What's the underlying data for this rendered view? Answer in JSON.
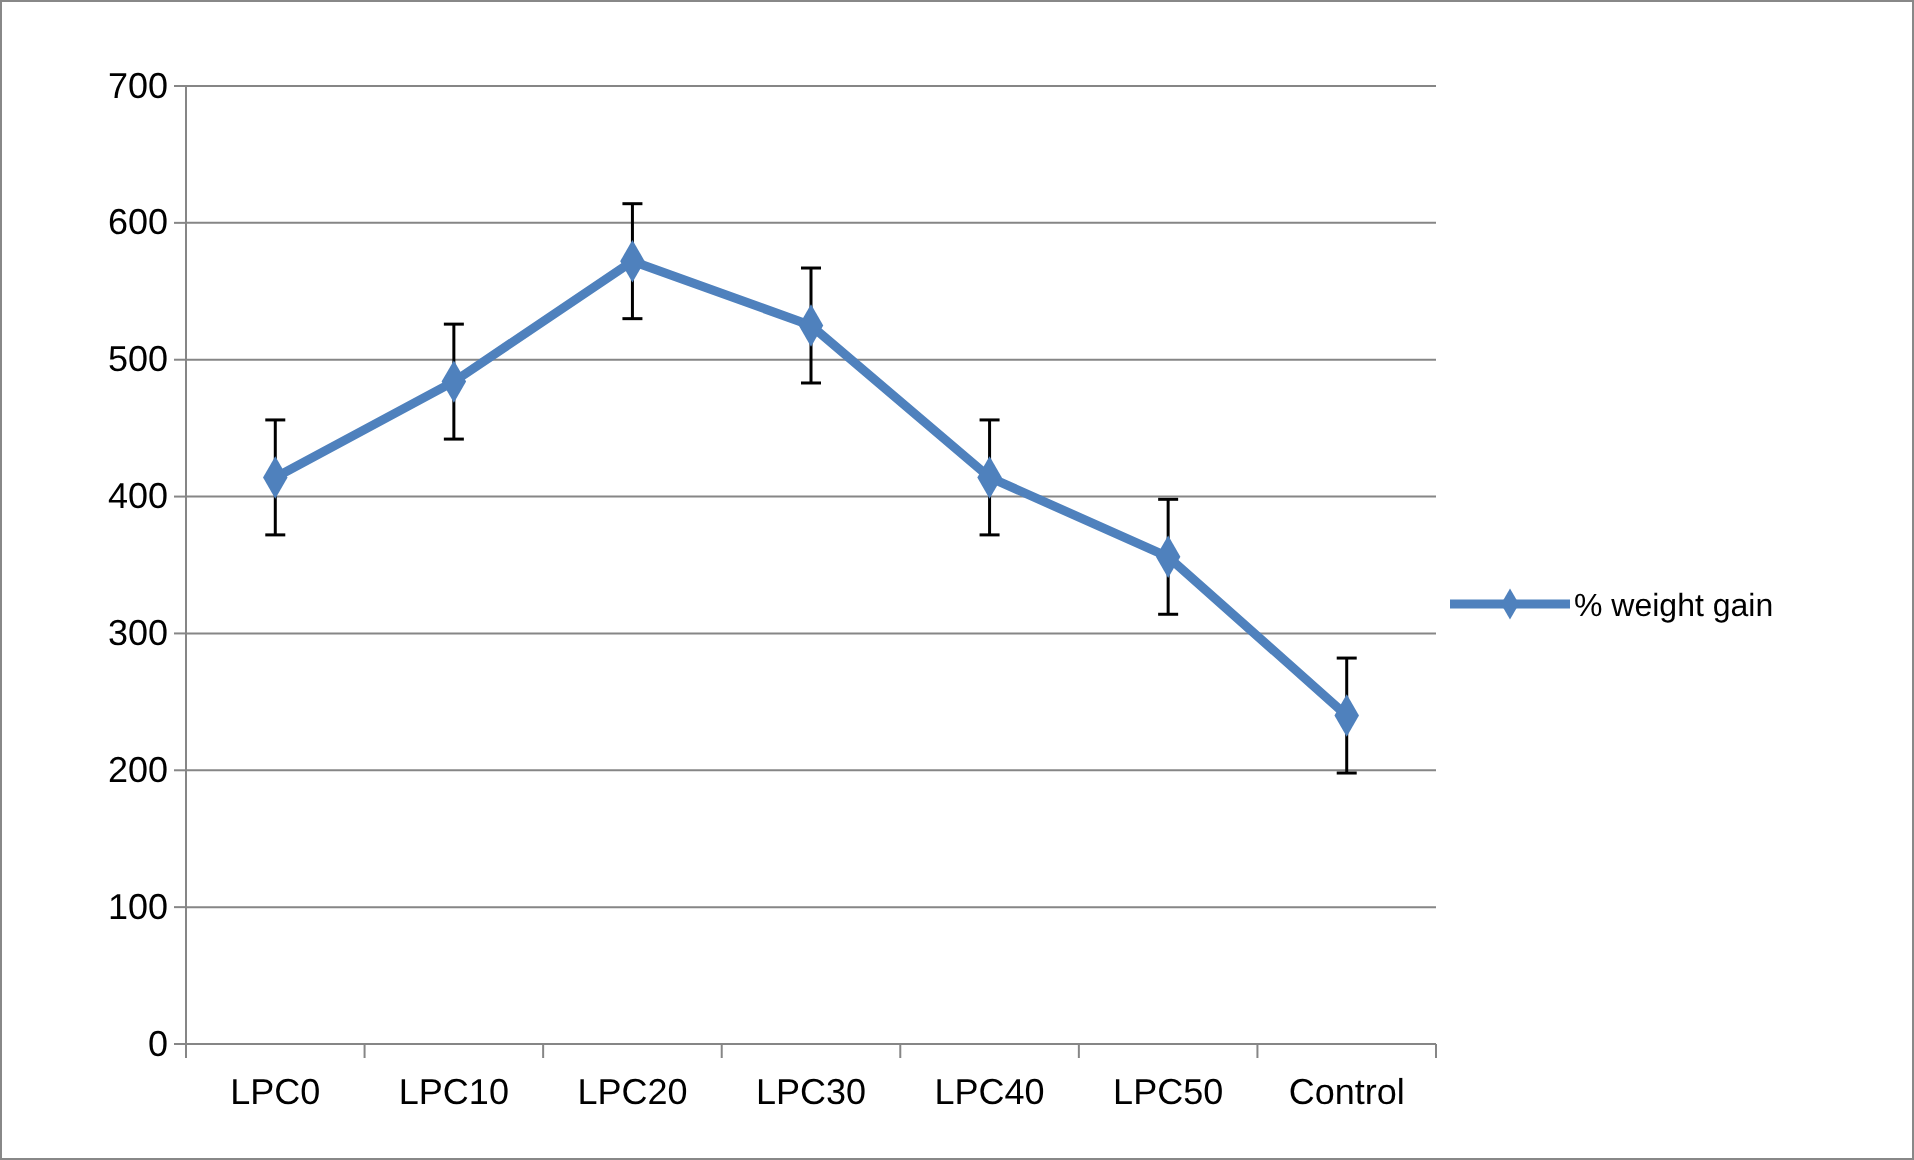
{
  "chart_data": {
    "type": "line",
    "categories": [
      "LPC0",
      "LPC10",
      "LPC20",
      "LPC30",
      "LPC40",
      "LPC50",
      "Control"
    ],
    "series": [
      {
        "name": "% weight gain",
        "color": "#4f81bd",
        "values": [
          414,
          484,
          572,
          525,
          414,
          356,
          240
        ],
        "errors": [
          42,
          42,
          42,
          42,
          42,
          42,
          42
        ]
      }
    ],
    "ylim": [
      0,
      700
    ],
    "yticks": [
      0,
      100,
      200,
      300,
      400,
      500,
      600,
      700
    ],
    "grid": "y",
    "legend": "right",
    "marker": "diamond",
    "line_style": "solid"
  }
}
